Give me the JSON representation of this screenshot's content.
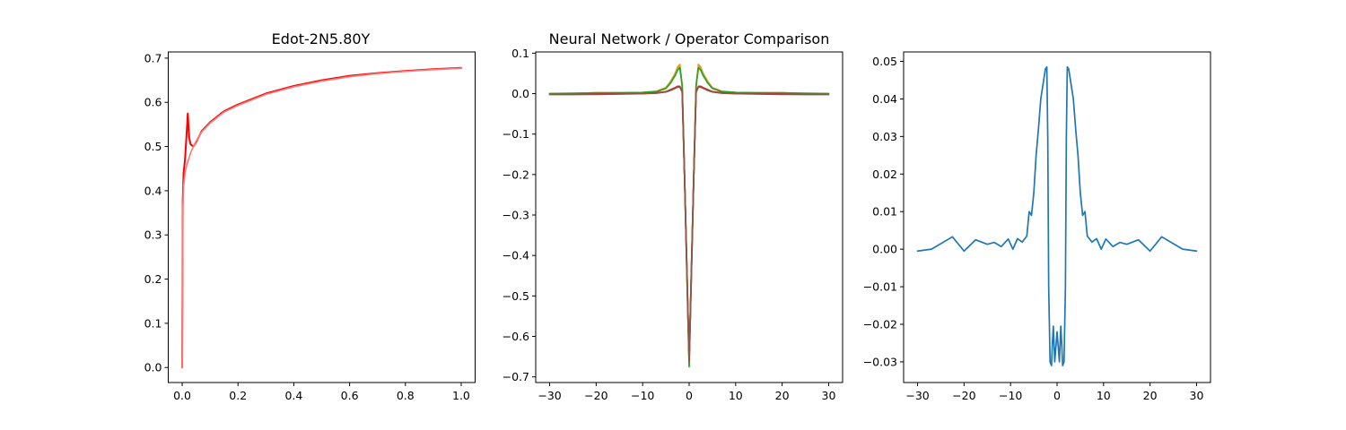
{
  "chart_data": [
    {
      "type": "line",
      "title": "Edot-2N5.80Y",
      "xlabel": "",
      "ylabel": "",
      "xlim": [
        -0.05,
        1.05
      ],
      "ylim": [
        -0.034,
        0.714
      ],
      "xticks": [
        0.0,
        0.2,
        0.4,
        0.6,
        0.8,
        1.0
      ],
      "xtick_labels": [
        "0.0",
        "0.2",
        "0.4",
        "0.6",
        "0.8",
        "1.0"
      ],
      "yticks": [
        0.0,
        0.1,
        0.2,
        0.3,
        0.4,
        0.5,
        0.6,
        0.7
      ],
      "ytick_labels": [
        "0.0",
        "0.1",
        "0.2",
        "0.3",
        "0.4",
        "0.5",
        "0.6",
        "0.7"
      ],
      "grid": false,
      "series": [
        {
          "color": "#ff0000",
          "x": [
            0.0,
            0.002,
            0.005,
            0.01,
            0.015,
            0.02,
            0.025,
            0.03,
            0.04,
            0.05,
            0.07,
            0.1,
            0.15,
            0.2,
            0.3,
            0.4,
            0.5,
            0.6,
            0.7,
            0.8,
            0.9,
            1.0
          ],
          "y": [
            0.0,
            0.38,
            0.44,
            0.47,
            0.52,
            0.575,
            0.52,
            0.505,
            0.5,
            0.51,
            0.535,
            0.555,
            0.58,
            0.595,
            0.62,
            0.637,
            0.65,
            0.66,
            0.666,
            0.671,
            0.675,
            0.678
          ]
        },
        {
          "color": "#f08080",
          "x": [
            0.0,
            0.002,
            0.005,
            0.01,
            0.015,
            0.02,
            0.025,
            0.03,
            0.04,
            0.05,
            0.07,
            0.1,
            0.15,
            0.2,
            0.3,
            0.4,
            0.5,
            0.6,
            0.7,
            0.8,
            0.9,
            1.0
          ],
          "y": [
            0.0,
            0.36,
            0.41,
            0.44,
            0.455,
            0.465,
            0.475,
            0.485,
            0.5,
            0.512,
            0.533,
            0.553,
            0.578,
            0.593,
            0.618,
            0.635,
            0.648,
            0.658,
            0.665,
            0.67,
            0.674,
            0.677
          ]
        }
      ]
    },
    {
      "type": "line",
      "title": "Neural Network / Operator Comparison",
      "xlabel": "",
      "ylabel": "",
      "xlim": [
        -33,
        33
      ],
      "ylim": [
        -0.714,
        0.103
      ],
      "xticks": [
        -30,
        -20,
        -10,
        0,
        10,
        20,
        30
      ],
      "xtick_labels": [
        "−30",
        "−20",
        "−10",
        "0",
        "10",
        "20",
        "30"
      ],
      "yticks": [
        0.1,
        0.0,
        -0.1,
        -0.2,
        -0.3,
        -0.4,
        -0.5,
        -0.6,
        -0.7
      ],
      "ytick_labels": [
        "0.1",
        "0.0",
        "−0.1",
        "−0.2",
        "−0.3",
        "−0.4",
        "−0.5",
        "−0.6",
        "−0.7"
      ],
      "grid": false,
      "series": [
        {
          "color": "#ff7f0e",
          "x": [
            -30,
            -25,
            -20,
            -15,
            -10,
            -7,
            -5,
            -4,
            -3,
            -2.5,
            -2,
            -1.5,
            -1,
            0,
            1,
            1.5,
            2,
            2.5,
            3,
            4,
            5,
            7,
            10,
            15,
            20,
            25,
            30
          ],
          "y": [
            0.0,
            0.0,
            0.002,
            0.002,
            0.003,
            0.006,
            0.015,
            0.03,
            0.05,
            0.065,
            0.072,
            0.02,
            -0.2,
            -0.665,
            -0.2,
            0.02,
            0.072,
            0.065,
            0.05,
            0.03,
            0.015,
            0.006,
            0.003,
            0.002,
            0.002,
            0.0,
            0.0
          ]
        },
        {
          "color": "#bcbd22",
          "x": [
            -30,
            -25,
            -20,
            -15,
            -10,
            -7,
            -5,
            -4,
            -3,
            -2.5,
            -2,
            -1.5,
            -1,
            0,
            1,
            1.5,
            2,
            2.5,
            3,
            4,
            5,
            7,
            10,
            15,
            20,
            25,
            30
          ],
          "y": [
            0.0,
            0.0,
            0.001,
            0.002,
            0.003,
            0.005,
            0.014,
            0.028,
            0.048,
            0.062,
            0.068,
            0.02,
            -0.2,
            -0.67,
            -0.2,
            0.02,
            0.068,
            0.062,
            0.048,
            0.028,
            0.014,
            0.005,
            0.003,
            0.002,
            0.001,
            0.0,
            0.0
          ]
        },
        {
          "color": "#2ca02c",
          "x": [
            -30,
            -25,
            -20,
            -15,
            -10,
            -7,
            -5,
            -4,
            -3,
            -2.5,
            -2,
            -1.5,
            -1,
            0,
            1,
            1.5,
            2,
            2.5,
            3,
            4,
            5,
            7,
            10,
            15,
            20,
            25,
            30
          ],
          "y": [
            0.0,
            0.001,
            0.002,
            0.002,
            0.003,
            0.005,
            0.013,
            0.026,
            0.045,
            0.058,
            0.064,
            0.02,
            -0.2,
            -0.675,
            -0.2,
            0.02,
            0.064,
            0.058,
            0.045,
            0.026,
            0.013,
            0.005,
            0.003,
            0.002,
            0.002,
            0.001,
            0.0
          ]
        },
        {
          "color": "#d62728",
          "x": [
            -30,
            -25,
            -20,
            -15,
            -10,
            -7,
            -5,
            -4,
            -3,
            -2.5,
            -2,
            -1.5,
            -1,
            0,
            1,
            1.5,
            2,
            2.5,
            3,
            4,
            5,
            7,
            10,
            15,
            20,
            25,
            30
          ],
          "y": [
            -0.002,
            -0.002,
            -0.001,
            0.0,
            0.0,
            0.002,
            0.005,
            0.01,
            0.015,
            0.018,
            0.018,
            0.005,
            -0.2,
            -0.66,
            -0.2,
            0.005,
            0.018,
            0.018,
            0.015,
            0.01,
            0.005,
            0.002,
            0.0,
            0.0,
            -0.001,
            -0.002,
            -0.002
          ]
        },
        {
          "color": "#8c564b",
          "x": [
            -30,
            -25,
            -20,
            -15,
            -10,
            -7,
            -5,
            -4,
            -3,
            -2.5,
            -2,
            -1.5,
            -1,
            0,
            1,
            1.5,
            2,
            2.5,
            3,
            4,
            5,
            7,
            10,
            15,
            20,
            25,
            30
          ],
          "y": [
            -0.002,
            -0.002,
            -0.002,
            -0.001,
            0.0,
            0.001,
            0.004,
            0.008,
            0.013,
            0.016,
            0.016,
            0.004,
            -0.2,
            -0.655,
            -0.2,
            0.004,
            0.016,
            0.016,
            0.013,
            0.008,
            0.004,
            0.001,
            0.0,
            -0.001,
            -0.002,
            -0.002,
            -0.002
          ]
        }
      ]
    },
    {
      "type": "line",
      "title": "",
      "xlabel": "",
      "ylabel": "",
      "xlim": [
        -33,
        33
      ],
      "ylim": [
        -0.0355,
        0.0525
      ],
      "xticks": [
        -30,
        -20,
        -10,
        0,
        10,
        20,
        30
      ],
      "xtick_labels": [
        "−30",
        "−20",
        "−10",
        "0",
        "10",
        "20",
        "30"
      ],
      "yticks": [
        0.05,
        0.04,
        0.03,
        0.02,
        0.01,
        0.0,
        -0.01,
        -0.02,
        -0.03
      ],
      "ytick_labels": [
        "0.05",
        "0.04",
        "0.03",
        "0.02",
        "0.01",
        "0.00",
        "−0.01",
        "−0.02",
        "−0.03"
      ],
      "grid": false,
      "series": [
        {
          "color": "#1f77b4",
          "x": [
            -30,
            -27,
            -22.5,
            -20,
            -17.5,
            -15,
            -13.5,
            -12,
            -10.5,
            -9.5,
            -8.5,
            -7.5,
            -6.5,
            -6,
            -5.5,
            -5,
            -4.5,
            -4,
            -3.5,
            -3,
            -2.5,
            -2.2,
            -2,
            -1.8,
            -1.5,
            -1.2,
            -1,
            -0.8,
            -0.5,
            0,
            0.5,
            0.8,
            1,
            1.2,
            1.5,
            1.8,
            2,
            2.2,
            2.5,
            3,
            3.5,
            4,
            4.5,
            5,
            5.5,
            6,
            6.5,
            7.5,
            8.5,
            9.5,
            10.5,
            12,
            13.5,
            15,
            17.5,
            20,
            22.5,
            27,
            30
          ],
          "y": [
            -0.0005,
            0.0,
            0.0033,
            -0.0005,
            0.0025,
            0.0013,
            0.0018,
            0.0007,
            0.0027,
            0.0,
            0.0028,
            0.0019,
            0.0035,
            0.01,
            0.009,
            0.015,
            0.025,
            0.032,
            0.04,
            0.044,
            0.048,
            0.0485,
            0.03,
            -0.01,
            -0.03,
            -0.031,
            -0.025,
            -0.0205,
            -0.03,
            -0.022,
            -0.03,
            -0.0205,
            -0.025,
            -0.031,
            -0.03,
            -0.01,
            0.03,
            0.0485,
            0.048,
            0.044,
            0.04,
            0.032,
            0.025,
            0.015,
            0.009,
            0.01,
            0.0035,
            0.0019,
            0.0028,
            0.0,
            0.0027,
            0.0007,
            0.0018,
            0.0013,
            0.0025,
            -0.0005,
            0.0033,
            0.0,
            -0.0005
          ]
        }
      ]
    }
  ]
}
